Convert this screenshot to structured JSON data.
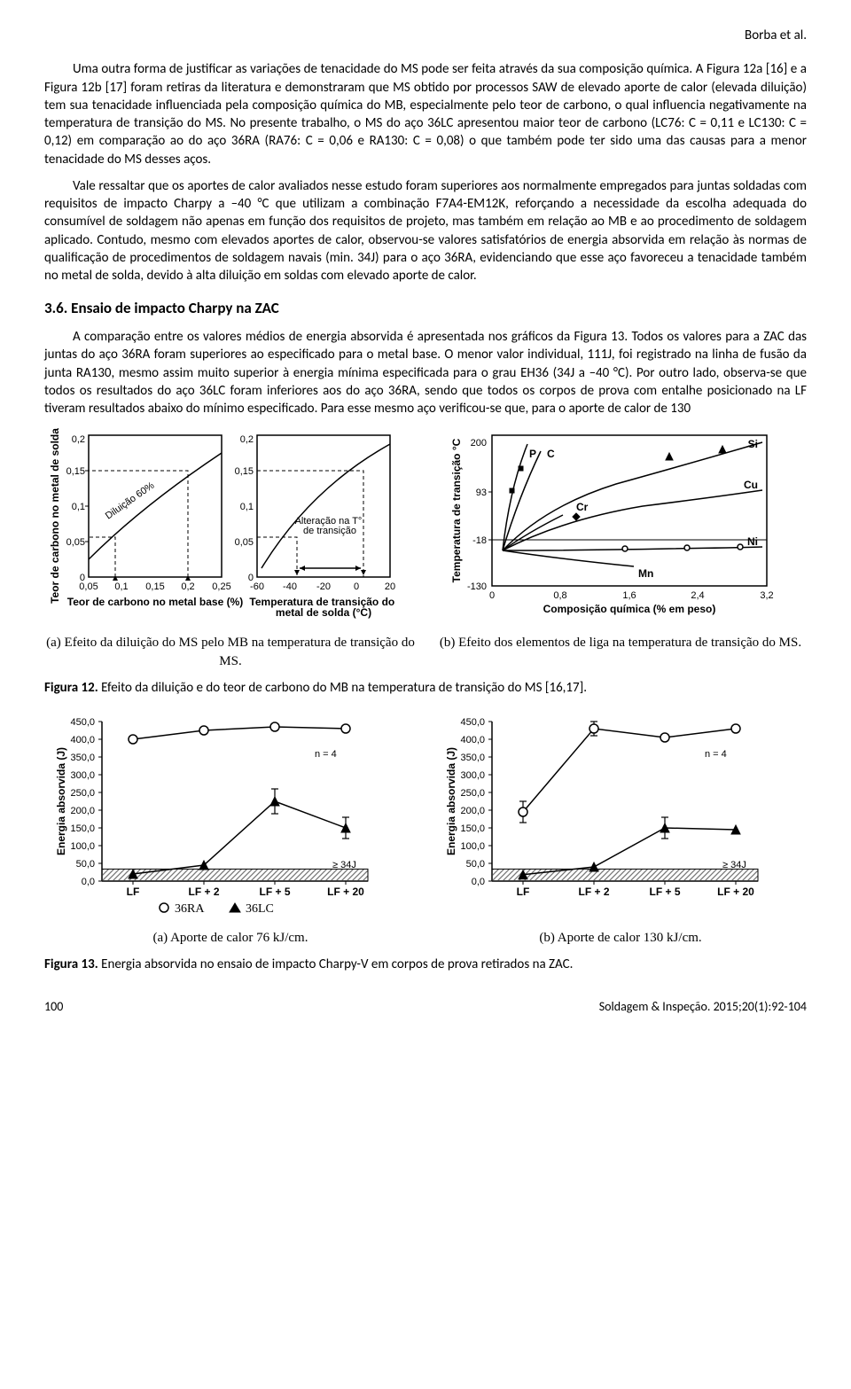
{
  "header": {
    "author": "Borba et al."
  },
  "para": {
    "p1": "Uma outra forma de justificar as variações de tenacidade do MS pode ser feita através da sua composição química. A Figura 12a [16] e a Figura 12b [17] foram retiras da literatura e demonstraram que MS obtido por processos SAW de elevado aporte de calor (elevada diluição) tem sua tenacidade influenciada pela composição química do MB, especialmente pelo teor de carbono, o qual influencia negativamente na temperatura de transição do MS. No presente trabalho, o MS do aço 36LC apresentou maior teor de carbono (LC76: C = 0,11 e LC130: C = 0,12) em comparação ao do aço 36RA (RA76: C = 0,06 e RA130: C = 0,08) o que também pode ter sido uma das causas para a menor tenacidade do MS desses aços.",
    "p2": "Vale ressaltar que os aportes de calor avaliados nesse estudo foram superiores aos normalmente empregados para juntas soldadas com requisitos de impacto Charpy a –40 °C que utilizam a combinação F7A4-EM12K, reforçando a necessidade da escolha adequada do consumível de soldagem não apenas em função dos requisitos de projeto, mas também em relação ao MB e ao procedimento de soldagem aplicado. Contudo, mesmo com elevados aportes de calor, observou-se valores satisfatórios de energia absorvida em relação às normas de qualificação de procedimentos de soldagem navais (min. 34J) para o aço 36RA, evidenciando que esse aço favoreceu a tenacidade também no metal de solda, devido à alta diluição em soldas com elevado aporte de calor."
  },
  "section36": {
    "title": "3.6. Ensaio de impacto Charpy na ZAC",
    "body": "A comparação entre os valores médios de energia absorvida é apresentada nos gráficos da Figura 13. Todos os valores para a ZAC das juntas do aço 36RA foram superiores ao especificado para o metal base. O menor valor individual, 111J, foi registrado na linha de fusão da junta RA130, mesmo assim muito superior à energia mínima especificada para o grau EH36 (34J a –40 °C). Por outro lado, observa-se que todos os resultados do aço 36LC foram inferiores aos do aço 36RA, sendo que todos os corpos de prova com entalhe posicionado na LF tiveram resultados abaixo do mínimo especificado. Para esse mesmo aço verificou-se que, para o aporte de calor de 130"
  },
  "fig12": {
    "a": {
      "type": "line",
      "xlabel": "Teor de carbono no metal base (%)",
      "ylabel": "Teor de carbono no metal de solda (%)",
      "xticks": [
        "0,05",
        "0,1",
        "0,15",
        "0,2",
        "0,25"
      ],
      "yticks": [
        "0",
        "0,05",
        "0,1",
        "0,15",
        "0,2"
      ],
      "diag_label": "Diluição 60%",
      "sub": "(a)  Efeito da diluição do MS pelo MB na temperatura de transição do MS."
    },
    "b": {
      "type": "line",
      "x2label": "Temperatura de transição do metal de solda (°C)",
      "x2ticks": [
        "-60",
        "-40",
        "-20",
        "0",
        "20"
      ],
      "y2ticks": [
        "0",
        "0,05",
        "0,1",
        "0,15",
        "0,2"
      ],
      "note": "Alteração na T° de transição",
      "sub": ""
    },
    "c": {
      "type": "multi-line",
      "xlabel": "Composição química (% em peso)",
      "ylabel": "Temperatura de transição °C",
      "xticks": [
        "0",
        "0,8",
        "1,6",
        "2,4",
        "3,2"
      ],
      "yticks": [
        "-130",
        "-18",
        "93",
        "200"
      ],
      "series": [
        "P",
        "C",
        "Cr",
        "Si",
        "Cu",
        "Mn",
        "Ni"
      ],
      "sub": "(b) Efeito dos elementos de liga na temperatura de transição do MS."
    },
    "caption_b": "Figura 12. ",
    "caption_t": "Efeito da diluição e do teor de carbono do MB na temperatura de transição do MS [16,17]."
  },
  "fig13": {
    "type": "line-marker",
    "xlabel_cats": [
      "LF",
      "LF + 2",
      "LF + 5",
      "LF + 20"
    ],
    "ylabel": "Energia absorvida (J)",
    "yticks": [
      "0,0",
      "50,0",
      "100,0",
      "150,0",
      "200,0",
      "250,0",
      "300,0",
      "350,0",
      "400,0",
      "450,0"
    ],
    "n_label": "n = 4",
    "threshold_label": "≥ 34J",
    "legend": {
      "ra": "36RA",
      "lc": "36LC"
    },
    "a": {
      "sub": "(a)  Aporte de calor 76 kJ/cm.",
      "ra_vals": [
        400,
        425,
        435,
        430
      ],
      "lc_vals": [
        20,
        45,
        225,
        150
      ],
      "lc_err": [
        0,
        0,
        35,
        30
      ],
      "ra_err": [
        0,
        0,
        0,
        0
      ],
      "threshold": 34
    },
    "b": {
      "sub": "(b)  Aporte de calor 130 kJ/cm.",
      "ra_vals": [
        195,
        430,
        405,
        430
      ],
      "lc_vals": [
        18,
        40,
        150,
        145
      ],
      "lc_err": [
        0,
        0,
        30,
        0
      ],
      "ra_err": [
        30,
        20,
        0,
        0
      ],
      "threshold": 34
    },
    "caption_b": "Figura 13. ",
    "caption_t": "Energia absorvida no ensaio de impacto Charpy-V em corpos de prova retirados na ZAC."
  },
  "footer": {
    "page": "100",
    "journal": "Soldagem & Inspeção. 2015;20(1):92-104"
  },
  "colors": {
    "fg": "#000000",
    "bg": "#ffffff",
    "hatch": "#9a9a9a"
  }
}
